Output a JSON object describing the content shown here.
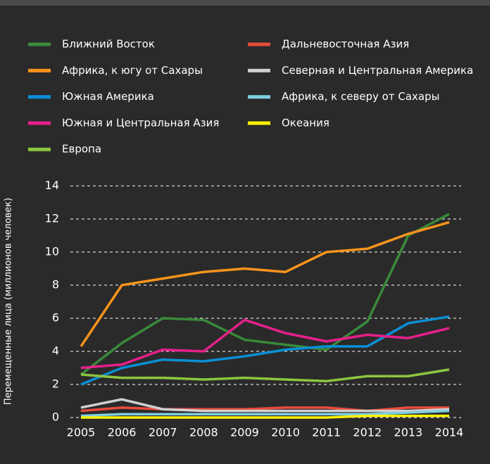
{
  "chart_data": {
    "type": "line",
    "y_label": "Перемещенные лица (миллионов человек)",
    "categories": [
      "2005",
      "2006",
      "2007",
      "2008",
      "2009",
      "2010",
      "2011",
      "2012",
      "2013",
      "2014"
    ],
    "ylim": [
      0,
      14
    ],
    "yticks": [
      0,
      2,
      4,
      6,
      8,
      10,
      12,
      14
    ],
    "grid": true,
    "series": [
      {
        "name": "Ближний Восток",
        "color": "#3a8a3a",
        "values": [
          2.6,
          4.5,
          6.0,
          5.9,
          4.7,
          4.4,
          4.1,
          5.8,
          11.0,
          12.3
        ]
      },
      {
        "name": "Африка, к югу от Сахары",
        "color": "#f7941d",
        "values": [
          4.3,
          8.0,
          8.4,
          8.8,
          9.0,
          8.8,
          10.0,
          10.2,
          11.1,
          11.8
        ]
      },
      {
        "name": "Южная Америка",
        "color": "#0a8fd6",
        "values": [
          2.0,
          3.0,
          3.5,
          3.4,
          3.7,
          4.1,
          4.3,
          4.3,
          5.7,
          6.1
        ]
      },
      {
        "name": "Южная и Центральная Азия",
        "color": "#e6208a",
        "values": [
          3.0,
          3.2,
          4.1,
          4.0,
          5.9,
          5.1,
          4.6,
          5.0,
          4.8,
          5.4
        ]
      },
      {
        "name": "Европа",
        "color": "#8cc63f",
        "values": [
          2.6,
          2.4,
          2.4,
          2.3,
          2.4,
          2.3,
          2.2,
          2.5,
          2.5,
          2.9
        ]
      },
      {
        "name": "Дальневосточная Азия",
        "color": "#e84c3d",
        "values": [
          0.4,
          0.6,
          0.5,
          0.5,
          0.5,
          0.6,
          0.6,
          0.4,
          0.6,
          0.6
        ]
      },
      {
        "name": "Северная и Центральная Америка",
        "color": "#d0d0d0",
        "values": [
          0.6,
          1.1,
          0.5,
          0.4,
          0.4,
          0.4,
          0.4,
          0.4,
          0.4,
          0.5
        ]
      },
      {
        "name": "Африка, к северу от Сахары",
        "color": "#7fcfe0",
        "values": [
          0.1,
          0.2,
          0.2,
          0.2,
          0.2,
          0.2,
          0.2,
          0.2,
          0.3,
          0.4
        ]
      },
      {
        "name": "Океания",
        "color": "#fff200",
        "values": [
          0.0,
          0.0,
          0.0,
          0.0,
          0.0,
          0.0,
          0.0,
          0.1,
          0.1,
          0.1
        ]
      }
    ]
  }
}
